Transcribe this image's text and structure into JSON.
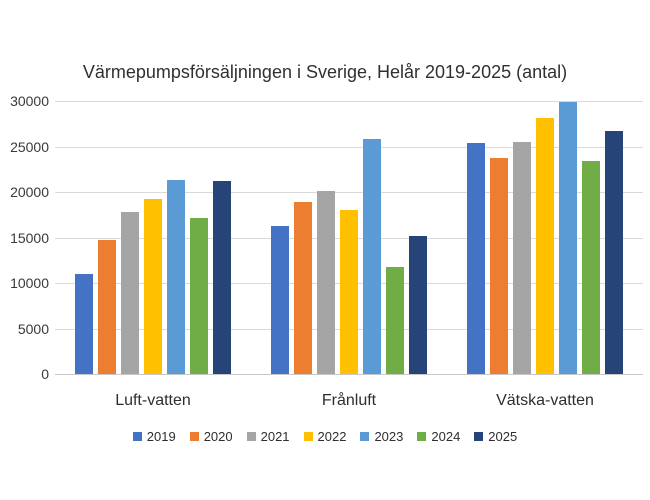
{
  "chart_data": {
    "type": "bar",
    "title": "Värmepumpsförsäljningen i Sverige, Helår 2019-2025 (antal)",
    "categories": [
      "Luft-vatten",
      "Frånluft",
      "Vätska-vatten"
    ],
    "series": [
      {
        "name": "2019",
        "color": "#4472C4",
        "values": [
          11000,
          16300,
          25400
        ]
      },
      {
        "name": "2020",
        "color": "#ED7D31",
        "values": [
          14700,
          18900,
          23700
        ]
      },
      {
        "name": "2021",
        "color": "#A5A5A5",
        "values": [
          17800,
          20100,
          25500
        ]
      },
      {
        "name": "2022",
        "color": "#FFC000",
        "values": [
          19200,
          18000,
          28100
        ]
      },
      {
        "name": "2023",
        "color": "#5B9BD5",
        "values": [
          21300,
          25800,
          29900
        ]
      },
      {
        "name": "2024",
        "color": "#70AD47",
        "values": [
          17100,
          11800,
          23400
        ]
      },
      {
        "name": "2025",
        "color": "#264478",
        "values": [
          21200,
          15200,
          26700
        ]
      }
    ],
    "ylim": [
      0,
      30000
    ],
    "yticks": [
      {
        "value": 0,
        "label": "0"
      },
      {
        "value": 5000,
        "label": "5000"
      },
      {
        "value": 10000,
        "label": "10000"
      },
      {
        "value": 15000,
        "label": "15000"
      },
      {
        "value": 20000,
        "label": "20000"
      },
      {
        "value": 25000,
        "label": "25000"
      },
      {
        "value": 30000,
        "label": "30000"
      }
    ],
    "grid": true,
    "legend_position": "bottom",
    "colors": {
      "gridline": "#D9D9D9",
      "axis_line": "#C8C8C8",
      "text": "#3A3A3A",
      "background": "#FFFFFF"
    }
  }
}
